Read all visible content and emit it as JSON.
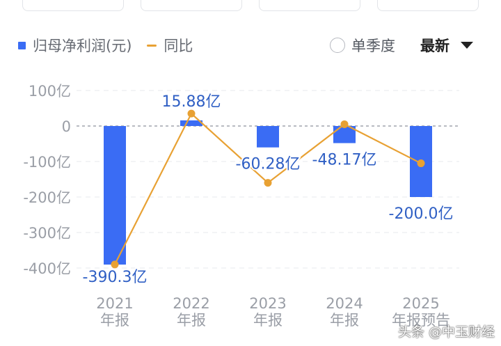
{
  "legend": {
    "bar_label": "归母净利润(元)",
    "line_label": "同比"
  },
  "controls": {
    "quarter_label": "单季度",
    "sort_label": "最新"
  },
  "watermark": "头条 @中玉财经",
  "colors": {
    "bar": "#3a6cf4",
    "line": "#e8a133",
    "label": "#2f5fc4",
    "axis_text": "#9a9ea6"
  },
  "chart_data": {
    "type": "bar",
    "categories": [
      {
        "year": "2021",
        "kind": "年报"
      },
      {
        "year": "2022",
        "kind": "年报"
      },
      {
        "year": "2023",
        "kind": "年报"
      },
      {
        "year": "2024",
        "kind": "年报"
      },
      {
        "year": "2025",
        "kind": "年报预告"
      }
    ],
    "series": [
      {
        "name": "归母净利润(元)",
        "type": "bar",
        "values": [
          -390.3,
          15.88,
          -60.28,
          -48.17,
          -200.0
        ],
        "labels": [
          "-390.3亿",
          "15.88亿",
          "-60.28亿",
          "-48.17亿",
          "-200.0亿"
        ]
      },
      {
        "name": "同比",
        "type": "line",
        "values": [
          -390,
          35,
          -160,
          5,
          -105
        ]
      }
    ],
    "y_ticks": [
      {
        "value": 100,
        "label": "100亿"
      },
      {
        "value": 0,
        "label": "0"
      },
      {
        "value": -100,
        "label": "-100亿"
      },
      {
        "value": -200,
        "label": "-200亿"
      },
      {
        "value": -300,
        "label": "-300亿"
      },
      {
        "value": -400,
        "label": "-400亿"
      }
    ],
    "ylim": [
      -400,
      100
    ],
    "grid": true
  }
}
